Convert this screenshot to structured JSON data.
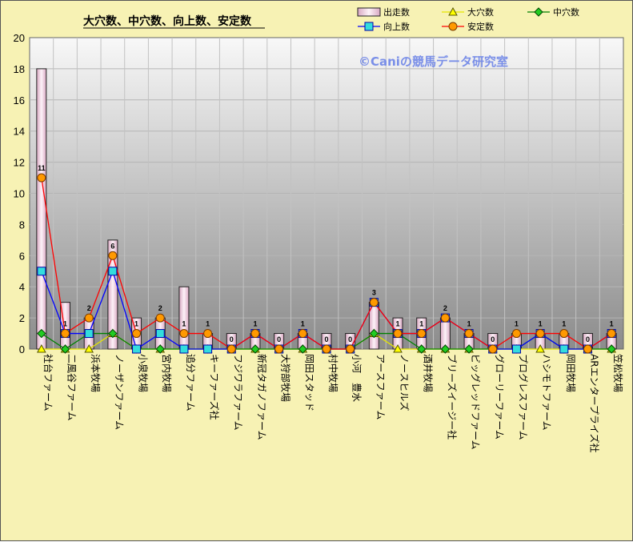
{
  "chart_data": {
    "type": "bar",
    "title": "大穴数、中穴数、向上数、安定数",
    "watermark": "©Caniの競馬データ研究室",
    "ylim": [
      0,
      20
    ],
    "yticks": [
      0,
      2,
      4,
      6,
      8,
      10,
      12,
      14,
      16,
      18,
      20
    ],
    "grid": true,
    "legend_position": "top-right",
    "categories": [
      "社台ファーム",
      "二風谷ファーム",
      "浜本牧場",
      "ノーザンファーム",
      "小泉牧場",
      "宮内牧場",
      "追分ファーム",
      "キーファーズ社",
      "フジワラファーム",
      "新冠タガノファーム",
      "大狩部牧場",
      "岡田スタッド",
      "村中牧場",
      "小河　豊水",
      "アースファーム",
      "ノースヒルズ",
      "酒井牧場",
      "ブリーズイージー社",
      "ビッグレッドファーム",
      "グローリーファーム",
      "プログレスファーム",
      "ハシモトファーム",
      "岡田牧場",
      "ARエンタープライズ社",
      "笠松牧場"
    ],
    "series": [
      {
        "name": "出走数",
        "kind": "bar",
        "color": "#f2d6e6",
        "values": [
          18,
          3,
          2,
          7,
          2,
          2,
          4,
          1,
          1,
          1,
          1,
          1,
          1,
          1,
          3,
          2,
          2,
          2,
          1,
          1,
          1,
          1,
          1,
          1,
          1
        ]
      },
      {
        "name": "大穴数",
        "kind": "line",
        "color": "#ffff00",
        "marker": "triangle",
        "values": [
          0,
          0,
          0,
          1,
          0,
          0,
          0,
          0,
          0,
          0,
          0,
          0,
          0,
          0,
          1,
          0,
          0,
          0,
          0,
          0,
          0,
          0,
          0,
          0,
          0
        ]
      },
      {
        "name": "中穴数",
        "kind": "line",
        "color": "#008000",
        "marker": "diamond",
        "values": [
          1,
          0,
          1,
          1,
          0,
          0,
          0,
          0,
          0,
          0,
          0,
          0,
          0,
          0,
          1,
          1,
          0,
          0,
          0,
          0,
          0,
          1,
          0,
          0,
          0
        ]
      },
      {
        "name": "向上数",
        "kind": "line",
        "color": "#0000ff",
        "marker": "square",
        "values": [
          5,
          1,
          1,
          5,
          0,
          1,
          0,
          0,
          0,
          1,
          0,
          1,
          0,
          0,
          3,
          1,
          1,
          2,
          1,
          0,
          0,
          1,
          0,
          0,
          1
        ]
      },
      {
        "name": "安定数",
        "kind": "line",
        "color": "#ff0000",
        "marker": "circle",
        "values": [
          11,
          1,
          2,
          6,
          1,
          2,
          1,
          1,
          0,
          1,
          0,
          1,
          0,
          0,
          3,
          1,
          1,
          2,
          1,
          0,
          1,
          1,
          1,
          0,
          1
        ]
      }
    ],
    "data_labels": [
      "11",
      "1",
      "2",
      "6",
      "1",
      "2",
      "1",
      "1",
      "0",
      "1",
      "0",
      "1",
      "0",
      "0",
      "3",
      "1",
      "1",
      "2",
      "1",
      "0",
      "1",
      "1",
      "1",
      "0",
      "1"
    ]
  }
}
